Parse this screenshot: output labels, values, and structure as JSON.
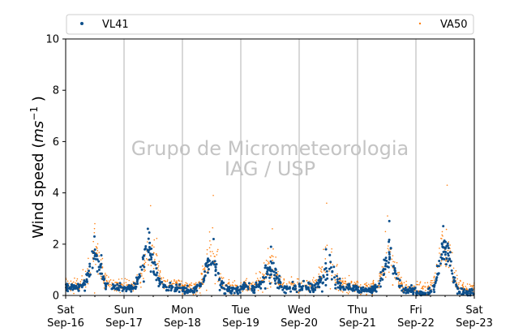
{
  "watermark": {
    "line1": "Grupo de Micrometeorologia",
    "line2": "IAG / USP"
  },
  "colors": {
    "vl41": "#0d4f8b",
    "va50": "#ff7f0e",
    "grid": "#b0b0b0",
    "watermark": "#c4c4c4"
  },
  "chart_data": {
    "type": "scatter",
    "title": "",
    "xlabel": "",
    "ylabel": "Wind speed (ms⁻¹ )",
    "ylabel_parts": {
      "main": "Wind speed (",
      "unit": "ms",
      "sup": "−1",
      "close": " )"
    },
    "ylim": [
      0,
      10
    ],
    "yticks": [
      0,
      2,
      4,
      6,
      8,
      10
    ],
    "xlim": [
      "2023-09-16",
      "2023-09-23"
    ],
    "xticks": [
      {
        "day": "Sat",
        "date": "Sep-16"
      },
      {
        "day": "Sun",
        "date": "Sep-17"
      },
      {
        "day": "Mon",
        "date": "Sep-18"
      },
      {
        "day": "Tue",
        "date": "Sep-19"
      },
      {
        "day": "Wed",
        "date": "Sep-20"
      },
      {
        "day": "Thu",
        "date": "Sep-21"
      },
      {
        "day": "Fri",
        "date": "Sep-22"
      },
      {
        "day": "Sat",
        "date": "Sep-23"
      }
    ],
    "grid": "vertical-daily",
    "legend_placement": "top",
    "series": [
      {
        "name": "VL41",
        "color": "#0d4f8b",
        "daily_profile": [
          {
            "date": "2023-09-16",
            "peak_hour": 12,
            "peak": 1.6,
            "base": 0.3,
            "max_seen": 2.3
          },
          {
            "date": "2023-09-17",
            "peak_hour": 10,
            "peak": 1.8,
            "base": 0.3,
            "max_seen": 2.6
          },
          {
            "date": "2023-09-18",
            "peak_hour": 12,
            "peak": 1.5,
            "base": 0.2,
            "max_seen": 2.2
          },
          {
            "date": "2023-09-19",
            "peak_hour": 12,
            "peak": 1.0,
            "base": 0.3,
            "max_seen": 1.9
          },
          {
            "date": "2023-09-20",
            "peak_hour": 12,
            "peak": 1.1,
            "base": 0.3,
            "max_seen": 1.8
          },
          {
            "date": "2023-09-21",
            "peak_hour": 13,
            "peak": 1.5,
            "base": 0.2,
            "max_seen": 2.9
          },
          {
            "date": "2023-09-22",
            "peak_hour": 12,
            "peak": 1.9,
            "base": 0.1,
            "max_seen": 2.7
          }
        ]
      },
      {
        "name": "VA50",
        "color": "#ff7f0e",
        "daily_profile": [
          {
            "date": "2023-09-16",
            "peak_hour": 12,
            "peak": 1.7,
            "base": 0.4,
            "max_seen": 2.8
          },
          {
            "date": "2023-09-17",
            "peak_hour": 11,
            "peak": 1.9,
            "base": 0.4,
            "max_seen": 3.5
          },
          {
            "date": "2023-09-18",
            "peak_hour": 12,
            "peak": 1.6,
            "base": 0.3,
            "max_seen": 3.9
          },
          {
            "date": "2023-09-19",
            "peak_hour": 12,
            "peak": 1.1,
            "base": 0.4,
            "max_seen": 2.6
          },
          {
            "date": "2023-09-20",
            "peak_hour": 12,
            "peak": 1.2,
            "base": 0.4,
            "max_seen": 3.6
          },
          {
            "date": "2023-09-21",
            "peak_hour": 13,
            "peak": 1.6,
            "base": 0.3,
            "max_seen": 3.1
          },
          {
            "date": "2023-09-22",
            "peak_hour": 12,
            "peak": 2.0,
            "base": 0.3,
            "max_seen": 4.3
          }
        ]
      }
    ]
  }
}
